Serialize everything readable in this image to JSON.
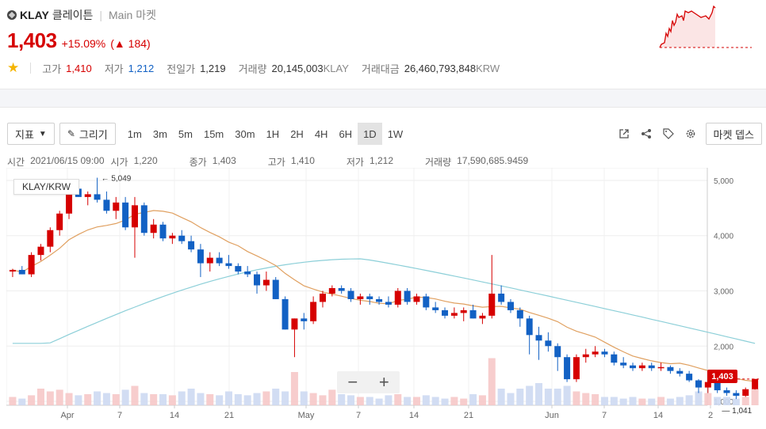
{
  "header": {
    "symbol": "KLAY",
    "name_kr": "클레이튼",
    "market": "Main 마켓",
    "price": "1,403",
    "change_pct": "+15.09%",
    "change_abs": "▲ 184",
    "stats": [
      {
        "label": "고가",
        "value": "1,410",
        "tone": "red"
      },
      {
        "label": "저가",
        "value": "1,212",
        "tone": "blue"
      },
      {
        "label": "전일가",
        "value": "1,219",
        "tone": ""
      },
      {
        "label": "거래량",
        "value": "20,145,003",
        "unit": "KLAY",
        "tone": ""
      },
      {
        "label": "거래대금",
        "value": "26,460,793,848",
        "unit": "KRW",
        "tone": ""
      }
    ]
  },
  "toolbar": {
    "indicator": "지표",
    "draw": "그리기",
    "periods": [
      "1m",
      "3m",
      "5m",
      "15m",
      "30m",
      "1H",
      "2H",
      "4H",
      "6H",
      "1D",
      "1W"
    ],
    "active_period": "1D",
    "depth_button": "마켓 뎁스"
  },
  "legend": {
    "time_label": "시간",
    "time": "2021/06/15 09:00",
    "open_label": "시가",
    "open": "1,220",
    "close_label": "종가",
    "close": "1,403",
    "high_label": "고가",
    "high": "1,410",
    "low_label": "저가",
    "low": "1,212",
    "vol_label": "거래량",
    "vol": "17,590,685.9459"
  },
  "chart_data": {
    "type": "candlestick",
    "pair": "KLAY/KRW",
    "y_ticks": [
      "5,000",
      "4,000",
      "3,000",
      "2,000",
      "1,000"
    ],
    "ylim": [
      900,
      5200
    ],
    "x_ticks": [
      "Apr",
      "7",
      "14",
      "21",
      "May",
      "7",
      "14",
      "21",
      "Jun",
      "7",
      "14",
      "2"
    ],
    "max_marker": "5,049",
    "min_marker": "1,041",
    "last_price_tag": "1,403",
    "colors": {
      "up": "#d60000",
      "down": "#1261c4",
      "ma_short": "#e0a060",
      "ma_long": "#8ccfd8"
    },
    "candles": [
      [
        3350,
        3400,
        3250,
        3380
      ],
      [
        3380,
        3450,
        3300,
        3300
      ],
      [
        3300,
        3700,
        3250,
        3650
      ],
      [
        3650,
        3850,
        3550,
        3800
      ],
      [
        3800,
        4150,
        3700,
        4100
      ],
      [
        4100,
        4450,
        4000,
        4400
      ],
      [
        4400,
        4900,
        4300,
        4850
      ],
      [
        4850,
        5000,
        4700,
        4700
      ],
      [
        4700,
        4800,
        4550,
        4750
      ],
      [
        4750,
        5049,
        4600,
        4650
      ],
      [
        4650,
        4800,
        4400,
        4450
      ],
      [
        4450,
        4700,
        4300,
        4600
      ],
      [
        4600,
        4700,
        4100,
        4150
      ],
      [
        4150,
        4700,
        3600,
        4550
      ],
      [
        4550,
        4600,
        4000,
        4050
      ],
      [
        4050,
        4300,
        3950,
        4200
      ],
      [
        4200,
        4250,
        3900,
        3950
      ],
      [
        3950,
        4050,
        3850,
        4000
      ],
      [
        4000,
        4100,
        3850,
        3900
      ],
      [
        3900,
        4000,
        3700,
        3750
      ],
      [
        3750,
        3850,
        3250,
        3500
      ],
      [
        3500,
        3700,
        3350,
        3600
      ],
      [
        3600,
        3700,
        3450,
        3500
      ],
      [
        3500,
        3650,
        3400,
        3450
      ],
      [
        3450,
        3500,
        3300,
        3350
      ],
      [
        3350,
        3450,
        3250,
        3300
      ],
      [
        3300,
        3350,
        2950,
        3100
      ],
      [
        3100,
        3350,
        3000,
        3200
      ],
      [
        3200,
        3250,
        2850,
        2850
      ],
      [
        2850,
        2900,
        2300,
        2300
      ],
      [
        2300,
        2500,
        1800,
        2500
      ],
      [
        2500,
        2600,
        2300,
        2450
      ],
      [
        2450,
        2900,
        2400,
        2800
      ],
      [
        2800,
        3000,
        2700,
        2950
      ],
      [
        2950,
        3100,
        2900,
        3050
      ],
      [
        3050,
        3100,
        2950,
        3000
      ],
      [
        3000,
        3050,
        2800,
        2850
      ],
      [
        2850,
        2950,
        2750,
        2900
      ],
      [
        2900,
        2950,
        2750,
        2850
      ],
      [
        2850,
        2900,
        2750,
        2800
      ],
      [
        2800,
        2900,
        2700,
        2750
      ],
      [
        2750,
        3050,
        2700,
        3000
      ],
      [
        3000,
        3050,
        2750,
        2800
      ],
      [
        2800,
        2950,
        2750,
        2900
      ],
      [
        2900,
        2950,
        2650,
        2700
      ],
      [
        2700,
        2800,
        2600,
        2650
      ],
      [
        2650,
        2700,
        2500,
        2550
      ],
      [
        2550,
        2700,
        2500,
        2600
      ],
      [
        2600,
        2700,
        2450,
        2650
      ],
      [
        2650,
        2750,
        2500,
        2500
      ],
      [
        2500,
        2600,
        2400,
        2550
      ],
      [
        2550,
        3650,
        2500,
        2950
      ],
      [
        2950,
        3100,
        2750,
        2800
      ],
      [
        2800,
        2850,
        2600,
        2650
      ],
      [
        2650,
        2700,
        2350,
        2500
      ],
      [
        2500,
        2550,
        1850,
        2200
      ],
      [
        2200,
        2350,
        1750,
        2100
      ],
      [
        2100,
        2250,
        1900,
        2000
      ],
      [
        2000,
        2050,
        1550,
        1800
      ],
      [
        1800,
        1850,
        1350,
        1400
      ],
      [
        1400,
        1850,
        1350,
        1800
      ],
      [
        1800,
        1950,
        1700,
        1850
      ],
      [
        1850,
        2000,
        1800,
        1900
      ],
      [
        1900,
        1950,
        1800,
        1850
      ],
      [
        1850,
        1900,
        1650,
        1700
      ],
      [
        1700,
        1800,
        1600,
        1650
      ],
      [
        1650,
        1700,
        1550,
        1600
      ],
      [
        1600,
        1700,
        1550,
        1650
      ],
      [
        1650,
        1700,
        1550,
        1600
      ],
      [
        1600,
        1700,
        1550,
        1620
      ],
      [
        1620,
        1650,
        1500,
        1550
      ],
      [
        1550,
        1600,
        1450,
        1500
      ],
      [
        1500,
        1550,
        1350,
        1380
      ],
      [
        1380,
        1400,
        1150,
        1250
      ],
      [
        1250,
        1400,
        1150,
        1350
      ],
      [
        1350,
        1400,
        1150,
        1200
      ],
      [
        1200,
        1250,
        1100,
        1150
      ],
      [
        1150,
        1200,
        1041,
        1100
      ],
      [
        1100,
        1250,
        1080,
        1219
      ],
      [
        1220,
        1410,
        1212,
        1403
      ]
    ],
    "volumes": [
      0.15,
      0.12,
      0.18,
      0.3,
      0.25,
      0.28,
      0.22,
      0.18,
      0.2,
      0.25,
      0.22,
      0.2,
      0.28,
      0.35,
      0.22,
      0.2,
      0.2,
      0.18,
      0.25,
      0.3,
      0.22,
      0.2,
      0.18,
      0.25,
      0.2,
      0.18,
      0.22,
      0.25,
      0.3,
      0.25,
      0.6,
      0.25,
      0.22,
      0.18,
      0.28,
      0.2,
      0.18,
      0.15,
      0.15,
      0.12,
      0.18,
      0.2,
      0.15,
      0.15,
      0.18,
      0.15,
      0.12,
      0.15,
      0.12,
      0.2,
      0.18,
      0.85,
      0.3,
      0.22,
      0.3,
      0.35,
      0.4,
      0.3,
      0.3,
      0.35,
      0.25,
      0.22,
      0.2,
      0.15,
      0.15,
      0.12,
      0.15,
      0.12,
      0.12,
      0.15,
      0.12,
      0.15,
      0.18,
      0.25,
      0.22,
      0.15,
      0.15,
      0.12,
      0.15,
      0.3
    ]
  }
}
